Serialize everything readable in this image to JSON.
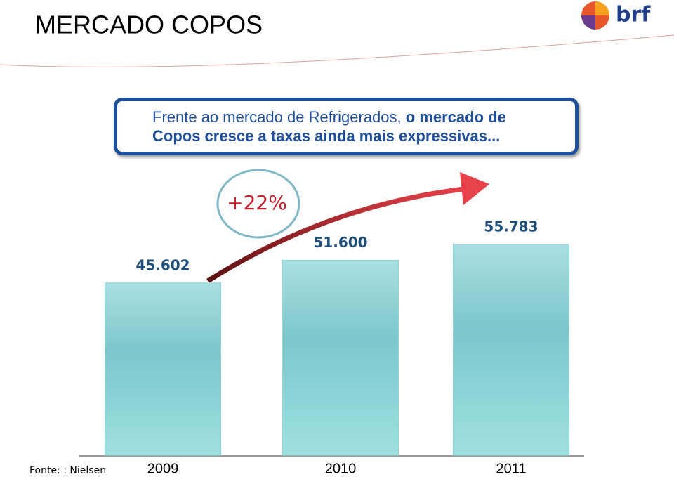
{
  "chart_data": {
    "type": "bar",
    "title": "MERCADO COPOS",
    "logo": "brf",
    "callout": [
      {
        "text": "Frente ao mercado de Refrigerados,",
        "bold": false
      },
      {
        "text": "o mercado de",
        "bold": true
      },
      {
        "text": "Copos cresce a taxas ainda mais expressivas...",
        "bold": true
      }
    ],
    "annotation": "+22%",
    "categories": [
      "2009",
      "2010",
      "2011"
    ],
    "values": [
      45602,
      51600,
      55783
    ],
    "value_labels": [
      "45.602",
      "51.600",
      "55.783"
    ],
    "color": "#8fd6d8",
    "source": "Fonte: : Nielsen"
  }
}
